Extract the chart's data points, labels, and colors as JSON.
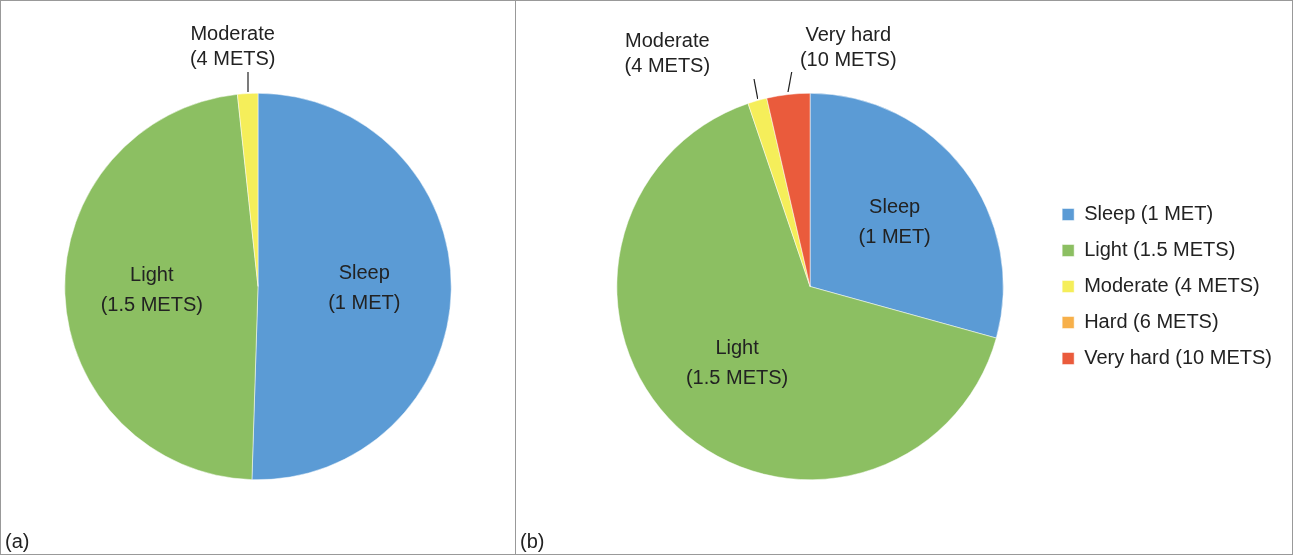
{
  "chart_data": [
    {
      "type": "pie",
      "categories": [
        "Sleep (1 MET)",
        "Light (1.5 METS)",
        "Moderate (4 METS)"
      ],
      "values": [
        50.5,
        47.8,
        1.7
      ],
      "colors": [
        "#5b9bd5",
        "#8cbf62",
        "#f5ee5a"
      ],
      "legend": false,
      "annotations": [
        "(a)"
      ]
    },
    {
      "type": "pie",
      "categories": [
        "Sleep (1 MET)",
        "Light (1.5 METS)",
        "Moderate (4 METS)",
        "Hard (6 METS)",
        "Very hard (10 METS)"
      ],
      "values": [
        29.3,
        65.5,
        1.6,
        0,
        3.6
      ],
      "colors": [
        "#5b9bd5",
        "#8cbf62",
        "#f5ee5a",
        "#f7b04a",
        "#ea5b3c"
      ],
      "legend": "right",
      "annotations": [
        "(b)"
      ]
    }
  ]
}
